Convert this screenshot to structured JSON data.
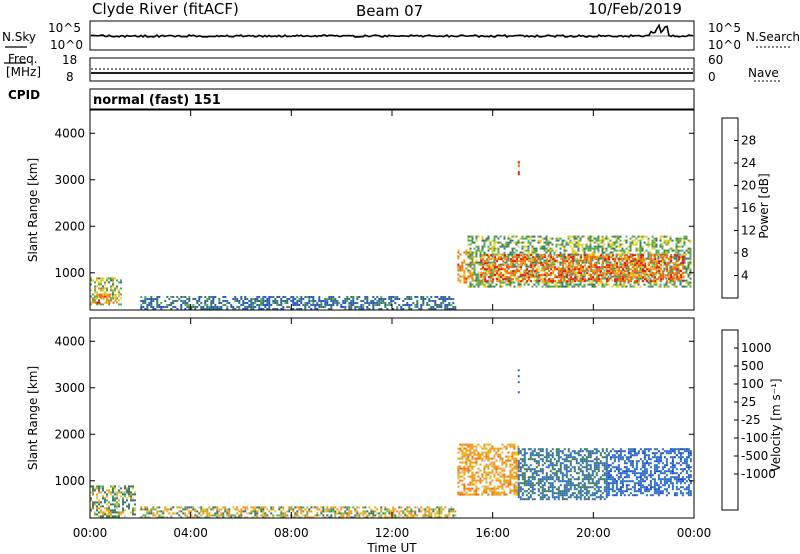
{
  "header": {
    "station": "Clyde River (fitACF)",
    "beam": "Beam 07",
    "date": "10/Feb/2019"
  },
  "nsky_panel": {
    "left_label": "N.Sky",
    "left_ticks": [
      "10^5",
      "10^0"
    ],
    "right_label": "N.Search",
    "right_ticks": [
      "10^5",
      "10^0"
    ]
  },
  "freq_panel": {
    "left_label_line1": "Freq.",
    "left_label_line2": "[MHz]",
    "left_ticks": [
      "18",
      "8"
    ],
    "right_label": "Nave",
    "right_ticks": [
      "60",
      "0"
    ]
  },
  "cpid": {
    "label": "CPID",
    "value": "normal (fast) 151"
  },
  "x_axis": {
    "label": "Time UT",
    "ticks": [
      "00:00",
      "04:00",
      "08:00",
      "12:00",
      "16:00",
      "20:00",
      "00:00"
    ]
  },
  "chart_data": [
    {
      "type": "heatmap",
      "name": "Power",
      "ylabel": "Slant Range [km]",
      "yticks": [
        1000,
        2000,
        3000,
        4000
      ],
      "ylim": [
        200,
        4500
      ],
      "xlim": [
        0,
        24
      ],
      "colorbar_label": "Power [dB]",
      "colorbar_ticks": [
        4,
        8,
        12,
        16,
        20,
        24,
        28
      ],
      "colorbar_range": [
        0,
        32
      ],
      "colorbar_colors": [
        "#1e46ff",
        "#2f5fa8",
        "#3b7a66",
        "#58a95a",
        "#e6d21e",
        "#f39a1a",
        "#ee6a14",
        "#e81c0e"
      ],
      "regions": [
        {
          "t0": 0.0,
          "t1": 1.2,
          "r0": 300,
          "r1": 900,
          "level": 16
        },
        {
          "t0": 0.1,
          "t1": 1.0,
          "r0": 350,
          "r1": 550,
          "level": 24
        },
        {
          "t0": 14.6,
          "t1": 15.2,
          "r0": 800,
          "r1": 1500,
          "level": 24
        },
        {
          "t0": 15.0,
          "t1": 23.9,
          "r0": 700,
          "r1": 1800,
          "level": 14
        },
        {
          "t0": 15.5,
          "t1": 23.6,
          "r0": 800,
          "r1": 1400,
          "level": 26
        },
        {
          "t0": 17.0,
          "t1": 17.05,
          "r0": 2900,
          "r1": 3400,
          "level": 28
        },
        {
          "t0": 2.0,
          "t1": 14.5,
          "r0": 200,
          "r1": 500,
          "level": 8
        }
      ]
    },
    {
      "type": "heatmap",
      "name": "Velocity",
      "ylabel": "Slant Range [km]",
      "yticks": [
        1000,
        2000,
        3000,
        4000
      ],
      "ylim": [
        200,
        4500
      ],
      "xlim": [
        0,
        24
      ],
      "colorbar_label": "Velocity [m s⁻¹]",
      "colorbar_ticks": [
        1000,
        500,
        100,
        25,
        -25,
        -100,
        -500,
        -1000
      ],
      "colorbar_colors": [
        "#1e46cc",
        "#2f6fc8",
        "#3b7a66",
        "#58a95a",
        "#79c83c",
        "#c8c8c8",
        "#e6c81e",
        "#f39a1a",
        "#ee6a14",
        "#e81c0e"
      ],
      "regions": [
        {
          "t0": 0.0,
          "t1": 1.8,
          "r0": 250,
          "r1": 900,
          "level": 100
        },
        {
          "t0": 2.0,
          "t1": 14.5,
          "r0": 200,
          "r1": 450,
          "level": -50
        },
        {
          "t0": 14.6,
          "t1": 17.0,
          "r0": 700,
          "r1": 1800,
          "level": -300
        },
        {
          "t0": 17.0,
          "t1": 20.5,
          "r0": 600,
          "r1": 1700,
          "level": 500
        },
        {
          "t0": 20.5,
          "t1": 23.9,
          "r0": 700,
          "r1": 1700,
          "level": 800
        },
        {
          "t0": 17.0,
          "t1": 17.05,
          "r0": 2900,
          "r1": 3400,
          "level": 800
        }
      ]
    }
  ]
}
